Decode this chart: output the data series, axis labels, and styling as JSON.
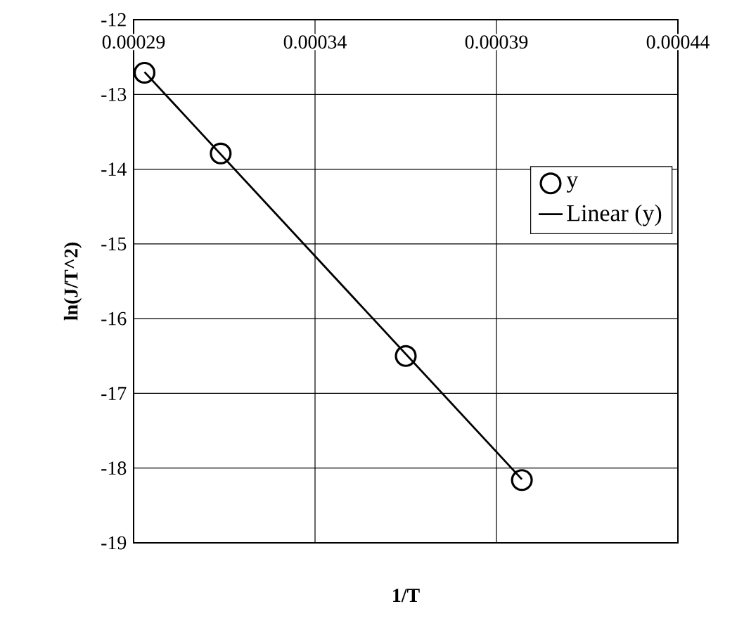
{
  "chart_data": {
    "type": "scatter",
    "xlabel": "1/T",
    "ylabel": "ln(J/T^2)",
    "xlim": [
      0.00029,
      0.00044
    ],
    "xticks": [
      0.00029,
      0.00034,
      0.00039,
      0.00044
    ],
    "ylim": [
      -19,
      -12
    ],
    "yticks": [
      -19,
      -18,
      -17,
      -16,
      -15,
      -14,
      -13,
      -12
    ],
    "grid": true,
    "legend": "right",
    "series": [
      {
        "name": "y",
        "marker": "circle",
        "color": "#000000",
        "x": [
          0.000293,
          0.000314,
          0.000365,
          0.000397
        ],
        "values": [
          -12.71,
          -13.79,
          -16.5,
          -18.16
        ]
      },
      {
        "name": "Linear (y)",
        "type": "line",
        "color": "#000000",
        "line_style": "solid",
        "x": [
          0.000293,
          0.000397
        ],
        "values": [
          -12.7,
          -18.15
        ]
      }
    ]
  }
}
